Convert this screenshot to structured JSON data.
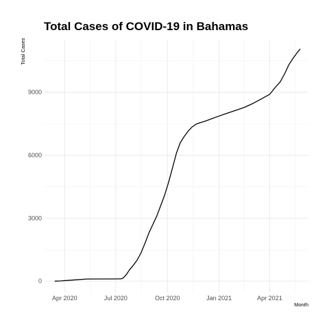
{
  "chart_data": {
    "type": "line",
    "title": "Total Cases of COVID-19 in Bahamas",
    "xlabel": "Month",
    "ylabel": "Total Cases",
    "x_ticks": [
      {
        "date": "2020-04-01",
        "label": "Apr 2020"
      },
      {
        "date": "2020-07-01",
        "label": "Jul 2020"
      },
      {
        "date": "2020-10-01",
        "label": "Oct 2020"
      },
      {
        "date": "2021-01-01",
        "label": "Jan 2021"
      },
      {
        "date": "2021-04-01",
        "label": "Apr 2021"
      }
    ],
    "y_ticks": [
      0,
      3000,
      6000,
      9000
    ],
    "xlim": [
      "2020-02-24",
      "2021-06-09"
    ],
    "ylim": [
      -550,
      11500
    ],
    "grid": true,
    "series": [
      {
        "x": [
          "2020-03-15",
          "2020-03-25",
          "2020-04-05",
          "2020-04-20",
          "2020-05-10",
          "2020-06-01",
          "2020-06-20",
          "2020-07-05",
          "2020-07-10",
          "2020-07-13",
          "2020-07-16",
          "2020-07-20",
          "2020-07-25",
          "2020-08-01",
          "2020-08-08",
          "2020-08-15",
          "2020-08-22",
          "2020-08-29",
          "2020-09-05",
          "2020-09-12",
          "2020-09-19",
          "2020-09-26",
          "2020-10-03",
          "2020-10-10",
          "2020-10-17",
          "2020-10-24",
          "2020-10-31",
          "2020-11-07",
          "2020-11-14",
          "2020-11-21",
          "2020-11-28",
          "2020-12-05",
          "2020-12-15",
          "2020-12-30",
          "2021-01-15",
          "2021-02-01",
          "2021-02-15",
          "2021-03-01",
          "2021-03-15",
          "2021-04-01",
          "2021-04-10",
          "2021-04-20",
          "2021-04-28",
          "2021-05-05",
          "2021-05-12",
          "2021-05-19",
          "2021-05-25"
        ],
        "y": [
          0,
          10,
          30,
          60,
          100,
          104,
          104,
          106,
          110,
          130,
          200,
          320,
          520,
          750,
          1000,
          1350,
          1800,
          2300,
          2700,
          3100,
          3600,
          4100,
          4700,
          5400,
          6100,
          6600,
          6900,
          7150,
          7350,
          7480,
          7550,
          7600,
          7700,
          7850,
          8000,
          8150,
          8280,
          8450,
          8650,
          8900,
          9200,
          9500,
          9900,
          10300,
          10600,
          10850,
          11050
        ]
      }
    ]
  }
}
